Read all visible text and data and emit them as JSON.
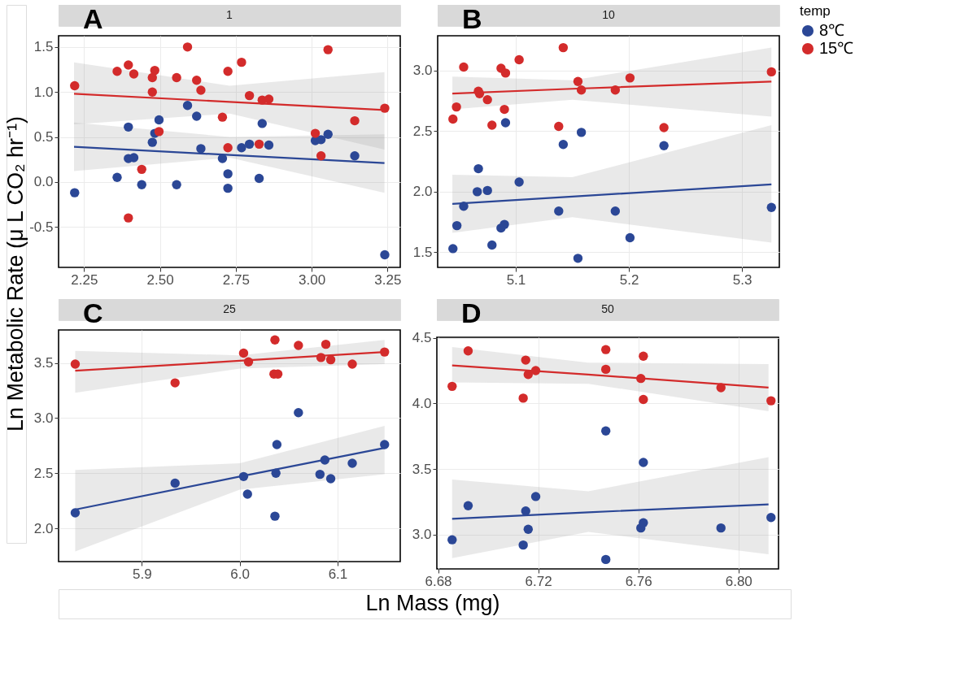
{
  "chart_data": [
    {
      "type": "scatter",
      "title": "1",
      "annotations": [
        "A"
      ],
      "legend": "right",
      "ylabel": "Ln Metabolic Rate (μ L CO₂ hr⁻¹)",
      "xlim": [
        2.166,
        3.292
      ],
      "ylim": [
        -0.95,
        1.625
      ],
      "xticks": [
        2.25,
        {
          "value": 2.5,
          "label": "2.50"
        },
        2.75,
        {
          "value": 3.0,
          "label": "3.00"
        },
        3.25
      ],
      "yticks": [
        -0.5,
        {
          "value": 0,
          "label": "0.0"
        },
        0.5,
        {
          "value": 1,
          "label": "1.0"
        },
        1.5
      ],
      "grid": true,
      "marker": "circle",
      "series": [
        {
          "name": "8℃",
          "color": "#2b4796",
          "type": "scatter",
          "x": [
            2.219,
            2.359,
            2.396,
            2.396,
            2.414,
            2.44,
            2.475,
            2.483,
            2.497,
            2.555,
            2.591,
            2.621,
            2.635,
            2.706,
            2.724,
            2.724,
            2.769,
            2.795,
            2.827,
            2.837,
            2.859,
            3.012,
            3.031,
            3.054,
            3.142,
            3.241
          ],
          "values": [
            -0.12,
            0.05,
            0.61,
            0.26,
            0.27,
            -0.03,
            0.44,
            0.54,
            0.69,
            -0.03,
            0.85,
            0.73,
            0.37,
            0.26,
            0.09,
            -0.07,
            0.38,
            0.42,
            0.04,
            0.65,
            0.41,
            0.46,
            0.47,
            0.53,
            0.29,
            -0.81
          ]
        },
        {
          "name": "15℃",
          "color": "#d32b2b",
          "type": "scatter",
          "x": [
            2.219,
            2.359,
            2.396,
            2.414,
            2.483,
            2.475,
            2.475,
            2.497,
            2.44,
            2.396,
            2.555,
            2.591,
            2.621,
            2.635,
            2.724,
            2.769,
            2.706,
            2.795,
            2.837,
            2.859,
            2.724,
            2.827,
            3.012,
            3.031,
            3.054,
            3.142,
            3.241
          ],
          "values": [
            1.07,
            1.23,
            1.3,
            1.2,
            1.24,
            1.16,
            1.0,
            0.56,
            0.14,
            -0.4,
            1.16,
            1.5,
            1.13,
            1.02,
            1.23,
            1.33,
            0.72,
            0.96,
            0.91,
            0.92,
            0.38,
            0.42,
            0.54,
            0.29,
            1.47,
            0.68,
            0.82
          ]
        },
        {
          "color": "#2b4796",
          "type": "line",
          "marker": "none",
          "x": [
            2.217,
            2.73,
            3.24
          ],
          "values": [
            0.39,
            0.3,
            0.21
          ],
          "lower": [
            0.12,
            0.27,
            -0.12
          ],
          "upper": [
            0.66,
            0.5,
            0.53
          ]
        },
        {
          "color": "#d32b2b",
          "type": "line",
          "marker": "none",
          "x": [
            2.217,
            2.73,
            3.24
          ],
          "values": [
            0.98,
            0.89,
            0.8
          ],
          "lower": [
            0.64,
            0.76,
            0.36
          ],
          "upper": [
            1.33,
            1.07,
            1.22
          ]
        }
      ]
    },
    {
      "type": "scatter",
      "title": "10",
      "annotations": [
        "B"
      ],
      "legend": "right",
      "xlim": [
        5.031,
        5.333
      ],
      "ylim": [
        1.375,
        3.288
      ],
      "xticks": [
        5.1,
        5.2,
        5.3
      ],
      "yticks": [
        1.5,
        {
          "value": 2,
          "label": "2.0"
        },
        2.5,
        {
          "value": 3,
          "label": "3.0"
        }
      ],
      "grid": true,
      "marker": "circle",
      "series": [
        {
          "name": "8℃",
          "color": "#2b4796",
          "type": "scatter",
          "x": [
            5.0445,
            5.048,
            5.054,
            5.067,
            5.066,
            5.075,
            5.079,
            5.087,
            5.09,
            5.091,
            5.103,
            5.138,
            5.142,
            5.155,
            5.158,
            5.188,
            5.201,
            5.231,
            5.326
          ],
          "values": [
            1.53,
            1.72,
            1.88,
            2.19,
            2.0,
            2.01,
            1.56,
            1.7,
            1.73,
            2.57,
            2.08,
            1.84,
            2.39,
            1.45,
            2.49,
            1.84,
            1.62,
            2.38,
            1.87
          ]
        },
        {
          "name": "15℃",
          "color": "#d32b2b",
          "type": "scatter",
          "x": [
            5.0445,
            5.0476,
            5.054,
            5.067,
            5.068,
            5.075,
            5.079,
            5.087,
            5.091,
            5.09,
            5.103,
            5.138,
            5.142,
            5.155,
            5.158,
            5.188,
            5.201,
            5.231,
            5.326
          ],
          "values": [
            2.6,
            2.7,
            3.03,
            2.83,
            2.81,
            2.76,
            2.55,
            3.02,
            2.98,
            2.68,
            3.09,
            2.54,
            3.19,
            2.91,
            2.84,
            2.84,
            2.94,
            2.53,
            2.99
          ]
        },
        {
          "color": "#2b4796",
          "type": "line",
          "marker": "none",
          "x": [
            5.044,
            5.15,
            5.326
          ],
          "values": [
            1.9,
            1.96,
            2.06
          ],
          "lower": [
            1.66,
            1.79,
            1.58
          ],
          "upper": [
            2.14,
            2.12,
            2.55
          ]
        },
        {
          "color": "#d32b2b",
          "type": "line",
          "marker": "none",
          "x": [
            5.044,
            5.15,
            5.326
          ],
          "values": [
            2.81,
            2.85,
            2.91
          ],
          "lower": [
            2.68,
            2.76,
            2.62
          ],
          "upper": [
            2.95,
            2.92,
            3.19
          ]
        }
      ]
    },
    {
      "type": "scatter",
      "title": "25",
      "annotations": [
        "C"
      ],
      "legend": "right",
      "xlabel": "Ln Mass (mg)",
      "xlim": [
        5.815,
        6.164
      ],
      "ylim": [
        1.698,
        3.8
      ],
      "xticks": [
        5.9,
        {
          "value": 6,
          "label": "6.0"
        },
        6.1
      ],
      "yticks": [
        {
          "value": 2,
          "label": "2.0"
        },
        2.5,
        {
          "value": 3,
          "label": "3.0"
        },
        3.5
      ],
      "grid": true,
      "marker": "circle",
      "series": [
        {
          "name": "8℃",
          "color": "#2b4796",
          "type": "scatter",
          "x": [
            5.832,
            5.934,
            6.004,
            6.008,
            6.036,
            6.038,
            6.037,
            6.06,
            6.082,
            6.087,
            6.093,
            6.115,
            6.148
          ],
          "values": [
            2.14,
            2.41,
            2.47,
            2.31,
            2.11,
            2.76,
            2.5,
            3.05,
            2.49,
            2.62,
            2.45,
            2.59,
            2.76
          ]
        },
        {
          "name": "15℃",
          "color": "#d32b2b",
          "type": "scatter",
          "x": [
            5.832,
            5.934,
            6.004,
            6.009,
            6.036,
            6.035,
            6.039,
            6.06,
            6.083,
            6.088,
            6.093,
            6.115,
            6.148
          ],
          "values": [
            3.49,
            3.32,
            3.59,
            3.51,
            3.71,
            3.4,
            3.4,
            3.66,
            3.55,
            3.67,
            3.53,
            3.49,
            3.6
          ]
        },
        {
          "color": "#2b4796",
          "type": "line",
          "marker": "none",
          "x": [
            5.832,
            6.0,
            6.148
          ],
          "values": [
            2.17,
            2.47,
            2.73
          ],
          "lower": [
            1.79,
            2.35,
            2.49
          ],
          "upper": [
            2.53,
            2.59,
            2.93
          ]
        },
        {
          "color": "#d32b2b",
          "type": "line",
          "marker": "none",
          "x": [
            5.832,
            6.0,
            6.148
          ],
          "values": [
            3.43,
            3.52,
            3.6
          ],
          "lower": [
            3.23,
            3.45,
            3.49
          ],
          "upper": [
            3.61,
            3.57,
            3.71
          ]
        }
      ]
    },
    {
      "type": "scatter",
      "title": "50",
      "annotations": [
        "D"
      ],
      "legend": "right",
      "legend_title": "temp",
      "xlim": [
        6.6795,
        6.816
      ],
      "ylim": [
        2.738,
        4.504
      ],
      "xticks": [
        6.68,
        6.72,
        6.76,
        {
          "value": 6.8,
          "label": "6.80"
        }
      ],
      "yticks": [
        {
          "value": 3,
          "label": "3.0"
        },
        3.5,
        {
          "value": 4,
          "label": "4.0"
        },
        4.5
      ],
      "grid": true,
      "marker": "circle",
      "series": [
        {
          "name": "8℃",
          "color": "#2b4796",
          "type": "scatter",
          "x": [
            6.6856,
            6.692,
            6.714,
            6.715,
            6.716,
            6.719,
            6.747,
            6.747,
            6.761,
            6.762,
            6.762,
            6.793,
            6.813
          ],
          "values": [
            2.96,
            3.22,
            2.92,
            3.18,
            3.04,
            3.29,
            3.79,
            2.81,
            3.05,
            3.55,
            3.09,
            3.05,
            3.13
          ]
        },
        {
          "name": "15℃",
          "color": "#d32b2b",
          "type": "scatter",
          "x": [
            6.6856,
            6.692,
            6.714,
            6.715,
            6.716,
            6.719,
            6.747,
            6.747,
            6.761,
            6.762,
            6.762,
            6.793,
            6.813
          ],
          "values": [
            4.13,
            4.4,
            4.04,
            4.33,
            4.22,
            4.25,
            4.41,
            4.26,
            4.19,
            4.36,
            4.03,
            4.12,
            4.02
          ]
        },
        {
          "color": "#2b4796",
          "type": "line",
          "marker": "none",
          "x": [
            6.6856,
            6.74,
            6.812
          ],
          "values": [
            3.12,
            3.17,
            3.23
          ],
          "lower": [
            2.82,
            3.02,
            2.85
          ],
          "upper": [
            3.42,
            3.33,
            3.59
          ]
        },
        {
          "color": "#d32b2b",
          "type": "line",
          "marker": "none",
          "x": [
            6.6856,
            6.74,
            6.812
          ],
          "values": [
            4.29,
            4.22,
            4.12
          ],
          "lower": [
            4.16,
            4.15,
            3.94
          ],
          "upper": [
            4.43,
            4.31,
            4.3
          ]
        }
      ]
    }
  ]
}
